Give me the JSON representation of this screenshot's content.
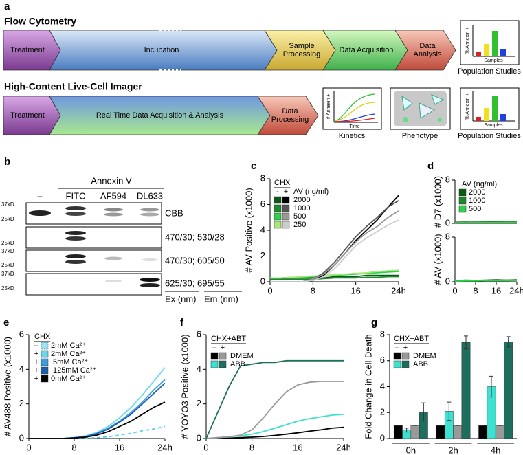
{
  "panel_a": {
    "label": "a",
    "flow": {
      "title": "Flow Cytometry",
      "steps": [
        "Treatment",
        "Incubation",
        "Sample Processing",
        "Data Acquisition",
        "Data Analysis"
      ]
    },
    "imager": {
      "title": "High-Content Live-Cell Imager",
      "steps": [
        "Treatment",
        "Real Time Data Acquisition & Analysis",
        "Data Processing"
      ]
    },
    "insets": {
      "bar_ylabel": "% Annexin +",
      "bar_xlabel": "Samples",
      "population": "Population Studies",
      "kinetics_ylabel": "# Annexin +",
      "kinetics_xlabel": "Time",
      "kinetics": "Kinetics",
      "phenotype": "Phenotype"
    }
  },
  "panel_b": {
    "label": "b",
    "reagent": "Annexin V",
    "lanes": [
      "–",
      "FITC",
      "AF594",
      "DL633"
    ],
    "blots": [
      {
        "markers": [
          "37kD",
          "25kD"
        ],
        "label": "CBB"
      },
      {
        "markers": [
          "25kD"
        ],
        "label": "470/30; 530/28"
      },
      {
        "markers": [
          "37kD",
          "25kD"
        ],
        "label": "470/30; 605/50"
      },
      {
        "markers": [
          "37kD",
          "25kD"
        ],
        "label": "625/30; 695/55"
      }
    ],
    "ex": "Ex (nm)",
    "em": "Em (nm)"
  },
  "chart_data": [
    {
      "type": "line",
      "panel": "c",
      "ylabel": "# AV Positive (x1000)",
      "x": [
        0,
        2,
        4,
        6,
        8,
        10,
        12,
        14,
        16,
        18,
        20,
        22,
        24
      ],
      "xlim": [
        0,
        24
      ],
      "xticks": [
        0,
        8,
        16,
        {
          "value": 24,
          "label": "24h"
        }
      ],
      "ylim": [
        0,
        8
      ],
      "yticks": [
        0,
        2,
        4,
        6,
        8
      ],
      "legend": {
        "title": "CHX",
        "columns": [
          "-",
          "+"
        ],
        "header": "AV (ng/ml)",
        "rows": [
          "2000",
          "1000",
          "500",
          "250"
        ]
      },
      "series": [
        {
          "color": "#0a5a16",
          "values": [
            0.3,
            0.3,
            0.3,
            0.3,
            0.3,
            0.3,
            0.4,
            0.4,
            0.4,
            0.5,
            0.5,
            0.5,
            0.5
          ]
        },
        {
          "color": "#1a8a2a",
          "values": [
            0.2,
            0.2,
            0.2,
            0.2,
            0.2,
            0.25,
            0.3,
            0.3,
            0.3,
            0.35,
            0.35,
            0.4,
            0.4
          ]
        },
        {
          "color": "#2fd04a",
          "values": [
            0.3,
            0.3,
            0.35,
            0.35,
            0.4,
            0.45,
            0.5,
            0.55,
            0.6,
            0.65,
            0.7,
            0.75,
            0.8
          ]
        },
        {
          "color": "#a8e87a",
          "values": [
            0.3,
            0.3,
            0.35,
            0.4,
            0.45,
            0.5,
            0.55,
            0.6,
            0.65,
            0.7,
            0.8,
            0.85,
            0.9
          ]
        },
        {
          "color": "#000000",
          "values": [
            0,
            0,
            0,
            0,
            0.1,
            0.5,
            1.3,
            2.2,
            3.2,
            4.0,
            4.8,
            5.8,
            6.7
          ]
        },
        {
          "color": "#555555",
          "values": [
            0,
            0,
            0,
            0,
            0.2,
            0.7,
            1.5,
            2.5,
            3.5,
            4.3,
            5.0,
            5.8,
            6.3
          ]
        },
        {
          "color": "#999999",
          "values": [
            0,
            0,
            0,
            0,
            0.2,
            0.6,
            1.3,
            2.2,
            3.1,
            3.8,
            4.3,
            5.0,
            5.5
          ]
        },
        {
          "color": "#cccccc",
          "values": [
            0,
            0,
            0,
            0,
            0.1,
            0.4,
            1.0,
            1.9,
            2.8,
            3.4,
            3.9,
            4.4,
            4.8
          ]
        }
      ]
    },
    {
      "type": "line",
      "panel": "d",
      "ylabel": "# D7 (x1000)",
      "x": [
        0,
        4,
        8,
        12,
        16,
        20,
        24
      ],
      "xlim": [
        0,
        24
      ],
      "ylim": [
        0,
        8
      ],
      "yticks": [
        0,
        8
      ],
      "legend": {
        "header": "AV (ng/ml)",
        "rows": [
          "2000",
          "1000",
          "500"
        ]
      },
      "series": [
        {
          "color": "#0a5a16",
          "values": [
            0.2,
            0.25,
            0.2,
            0.3,
            0.25,
            0.3,
            0.25
          ]
        },
        {
          "color": "#1a8a2a",
          "values": [
            0.15,
            0.2,
            0.25,
            0.2,
            0.2,
            0.25,
            0.2
          ]
        },
        {
          "color": "#2fd04a",
          "values": [
            0.1,
            0.15,
            0.15,
            0.2,
            0.15,
            0.2,
            0.2
          ]
        }
      ]
    },
    {
      "type": "line",
      "ylabel": "# AV (x1000)",
      "x": [
        0,
        4,
        8,
        12,
        16,
        20,
        24
      ],
      "xlim": [
        0,
        24
      ],
      "xticks": [
        0,
        8,
        16,
        {
          "value": 24,
          "label": "24h"
        }
      ],
      "ylim": [
        0,
        8
      ],
      "yticks": [
        0,
        8
      ],
      "series": [
        {
          "color": "#0a5a16",
          "values": [
            0.2,
            0.3,
            0.25,
            0.3,
            0.35,
            0.3,
            0.35
          ]
        },
        {
          "color": "#1a8a2a",
          "values": [
            0.15,
            0.2,
            0.2,
            0.25,
            0.25,
            0.3,
            0.3
          ]
        },
        {
          "color": "#2fd04a",
          "values": [
            0.1,
            0.15,
            0.15,
            0.2,
            0.2,
            0.2,
            0.25
          ]
        }
      ]
    },
    {
      "type": "line",
      "panel": "e",
      "ylabel": "# AV488 Positive (x1000)",
      "x": [
        0,
        2,
        4,
        6,
        8,
        10,
        12,
        14,
        16,
        18,
        20,
        22,
        24
      ],
      "xlim": [
        0,
        24
      ],
      "xticks": [
        0,
        8,
        16,
        {
          "value": 24,
          "label": "24h"
        }
      ],
      "ylim": [
        0,
        6
      ],
      "yticks": [
        0,
        2,
        4,
        6
      ],
      "legend": {
        "title": "CHX",
        "signs": [
          "–",
          "+",
          "+",
          "+",
          "+"
        ],
        "rows": [
          "2mM Ca²⁺",
          "2mM Ca²⁺",
          ".5mM Ca²⁺",
          ".125mM Ca²⁺",
          "0mM Ca²⁺"
        ]
      },
      "series": [
        {
          "color": "#5bd0ee",
          "dashed": true,
          "values": [
            0,
            0,
            0,
            0,
            0,
            0.02,
            0.05,
            0.1,
            0.2,
            0.3,
            0.45,
            0.55,
            0.7
          ]
        },
        {
          "color": "#6cd6f0",
          "values": [
            0,
            0,
            0,
            0,
            0.05,
            0.15,
            0.35,
            0.7,
            1.2,
            1.8,
            2.5,
            3.3,
            4.1
          ]
        },
        {
          "color": "#3a9ee0",
          "values": [
            0,
            0,
            0,
            0,
            0.05,
            0.12,
            0.3,
            0.6,
            1.0,
            1.5,
            2.1,
            2.8,
            3.4
          ]
        },
        {
          "color": "#1c5fb0",
          "values": [
            0,
            0,
            0,
            0,
            0.04,
            0.1,
            0.28,
            0.55,
            0.95,
            1.4,
            2.0,
            2.6,
            3.2
          ]
        },
        {
          "color": "#000000",
          "values": [
            0,
            0,
            0,
            0,
            0.03,
            0.08,
            0.2,
            0.4,
            0.7,
            1.0,
            1.4,
            1.8,
            2.1
          ]
        }
      ]
    },
    {
      "type": "line",
      "panel": "f",
      "ylabel": "# YOYO3 Positive (x1000)",
      "x": [
        0,
        2,
        4,
        6,
        8,
        10,
        12,
        14,
        16,
        18,
        20,
        22,
        24
      ],
      "xlim": [
        0,
        24
      ],
      "xticks": [
        0,
        8,
        16,
        {
          "value": 24,
          "label": "24h"
        }
      ],
      "ylim": [
        0,
        6
      ],
      "yticks": [
        0,
        2,
        4,
        6
      ],
      "legend": {
        "title": "CHX+ABT",
        "columns": [
          "–",
          "+"
        ],
        "rows": [
          "DMEM",
          "ABB"
        ]
      },
      "series": [
        {
          "color": "#000000",
          "values": [
            0,
            0,
            0.02,
            0.05,
            0.08,
            0.12,
            0.18,
            0.25,
            0.33,
            0.42,
            0.5,
            0.6,
            0.65
          ]
        },
        {
          "color": "#3ee0d0",
          "values": [
            0,
            0.05,
            0.1,
            0.15,
            0.25,
            0.4,
            0.6,
            0.8,
            1.0,
            1.15,
            1.25,
            1.35,
            1.4
          ]
        },
        {
          "color": "#999999",
          "values": [
            0,
            0.05,
            0.1,
            0.2,
            0.5,
            1.2,
            2.0,
            2.7,
            3.1,
            3.25,
            3.3,
            3.3,
            3.3
          ]
        },
        {
          "color": "#1e6e5e",
          "values": [
            0,
            1.5,
            3.0,
            4.2,
            4.3,
            4.4,
            4.4,
            4.5,
            4.5,
            4.5,
            4.5,
            4.5,
            4.5
          ]
        }
      ]
    },
    {
      "type": "bar",
      "panel": "g",
      "ylabel": "Fold Change in Cell Death",
      "categories": [
        "0h",
        "2h",
        "4h"
      ],
      "ylim": [
        0,
        8
      ],
      "yticks": [
        0,
        2,
        4,
        6,
        8
      ],
      "legend": {
        "title": "CHX+ABT",
        "columns": [
          "–",
          "+"
        ],
        "rows": [
          "DMEM",
          "ABB"
        ]
      },
      "series": [
        {
          "color": "#000000",
          "values": [
            1,
            1,
            1
          ],
          "errors": [
            0,
            0,
            0
          ]
        },
        {
          "color": "#3ee0d0",
          "values": [
            0.65,
            2.1,
            4.0
          ],
          "errors": [
            0.15,
            0.7,
            0.8
          ]
        },
        {
          "color": "#999999",
          "values": [
            1,
            1,
            1
          ],
          "errors": [
            0,
            0,
            0
          ]
        },
        {
          "color": "#1e6e5e",
          "values": [
            2.05,
            7.4,
            7.45
          ],
          "errors": [
            0.7,
            0.5,
            0.4
          ]
        }
      ]
    }
  ]
}
